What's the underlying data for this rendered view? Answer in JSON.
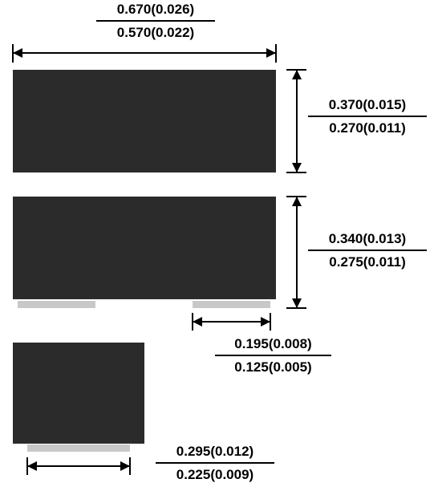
{
  "dimensions": {
    "length": {
      "max": "0.670(0.026)",
      "min": "0.570(0.022)"
    },
    "width": {
      "max": "0.370(0.015)",
      "min": "0.270(0.011)"
    },
    "height": {
      "max": "0.340(0.013)",
      "min": "0.275(0.011)"
    },
    "terminal_side": {
      "max": "0.195(0.008)",
      "min": "0.125(0.005)"
    },
    "terminal_end": {
      "max": "0.295(0.012)",
      "min": "0.225(0.009)"
    }
  },
  "colors": {
    "body": "#2b2b2b",
    "terminal": "#c8c8c8",
    "line": "#000000"
  }
}
